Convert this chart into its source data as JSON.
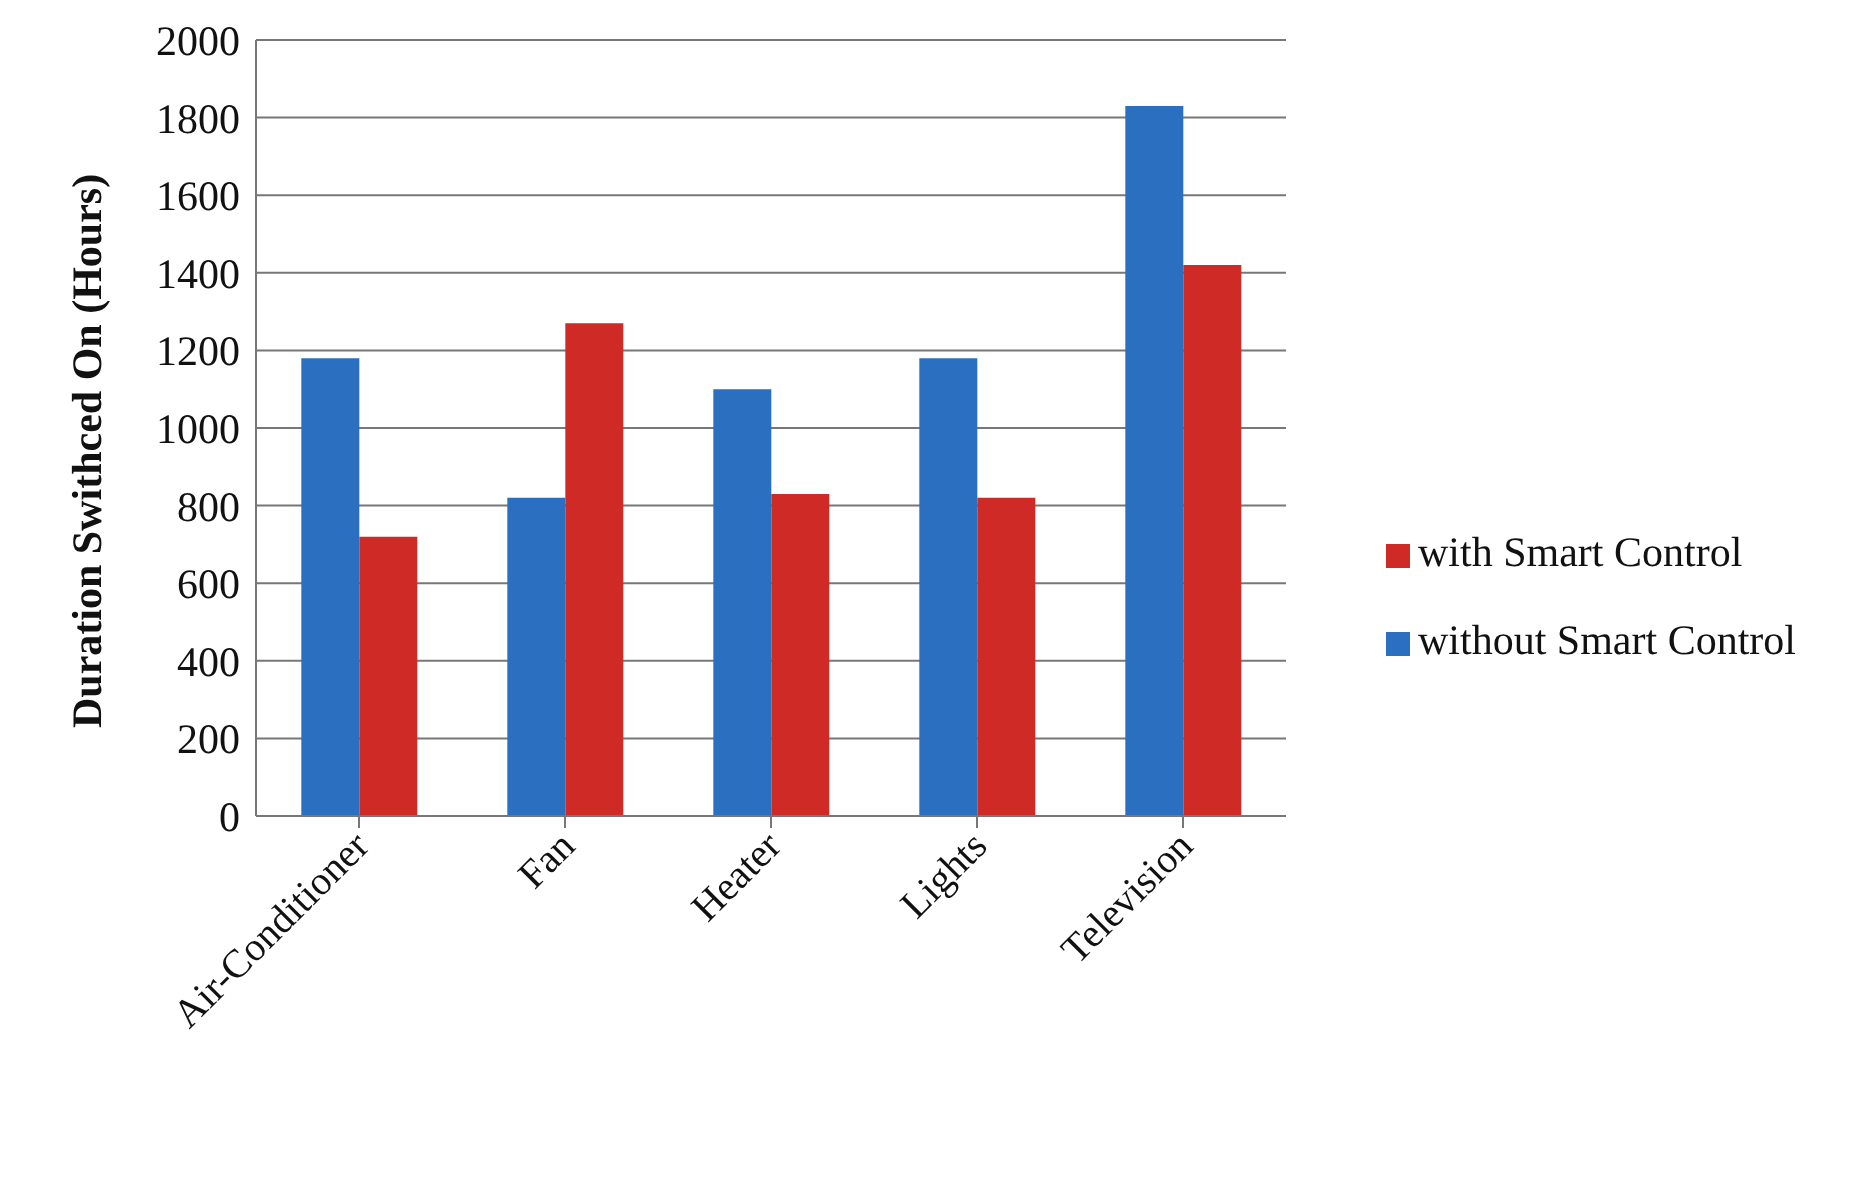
{
  "chart_data": {
    "type": "bar",
    "ylabel": "Duration Swithced On (Hours)",
    "categories": [
      "Air-Conditioner",
      "Fan",
      "Heater",
      "Lights",
      "Television"
    ],
    "series": [
      {
        "name": "without Smart Control",
        "color": "#2a6fc0",
        "values": [
          1180,
          820,
          1100,
          1180,
          1830
        ]
      },
      {
        "name": "with Smart Control",
        "color": "#d02a26",
        "values": [
          720,
          1270,
          830,
          820,
          1420
        ]
      }
    ],
    "ylim": [
      0,
      2000
    ],
    "yticks": [
      0,
      200,
      400,
      600,
      800,
      1000,
      1200,
      1400,
      1600,
      1800,
      2000
    ],
    "grid": "y",
    "legend": "right"
  }
}
